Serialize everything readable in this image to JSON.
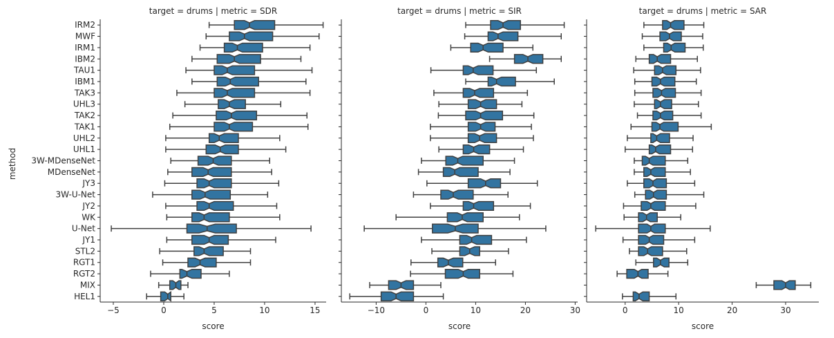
{
  "chart_data": {
    "type": "boxplot",
    "orientation": "horizontal",
    "notched": true,
    "box_color": "#3274a1",
    "line_color": "#3f3f3f",
    "ylabel": "method",
    "methods": [
      "IRM2",
      "MWF",
      "IRM1",
      "IBM2",
      "TAU1",
      "IBM1",
      "TAK3",
      "UHL3",
      "TAK2",
      "TAK1",
      "UHL2",
      "UHL1",
      "3W-MDenseNet",
      "MDenseNet",
      "JY3",
      "3W-U-Net",
      "JY2",
      "WK",
      "U-Net",
      "JY1",
      "STL2",
      "RGT1",
      "RGT2",
      "MIX",
      "HEL1"
    ],
    "panels": [
      {
        "title": "target = drums | metric = SDR",
        "xlabel": "score",
        "xlim": [
          -6.3,
          16.1
        ],
        "xticks": [
          -5,
          0,
          5,
          10,
          15
        ],
        "boxes": [
          {
            "wl": 4.5,
            "q1": 7.0,
            "med": 8.5,
            "q3": 11.0,
            "wh": 15.8,
            "nl": 8.0,
            "nh": 9.0
          },
          {
            "wl": 4.2,
            "q1": 6.5,
            "med": 8.0,
            "q3": 10.8,
            "wh": 15.4,
            "nl": 7.5,
            "nh": 8.5
          },
          {
            "wl": 3.6,
            "q1": 6.0,
            "med": 7.3,
            "q3": 9.8,
            "wh": 14.5,
            "nl": 6.8,
            "nh": 7.8
          },
          {
            "wl": 2.8,
            "q1": 5.3,
            "med": 7.0,
            "q3": 9.6,
            "wh": 13.6,
            "nl": 6.5,
            "nh": 7.5
          },
          {
            "wl": 2.2,
            "q1": 5.0,
            "med": 6.3,
            "q3": 9.0,
            "wh": 14.7,
            "nl": 5.8,
            "nh": 6.8
          },
          {
            "wl": 2.8,
            "q1": 5.3,
            "med": 6.6,
            "q3": 9.4,
            "wh": 14.1,
            "nl": 6.1,
            "nh": 7.1
          },
          {
            "wl": 1.3,
            "q1": 5.0,
            "med": 6.3,
            "q3": 9.0,
            "wh": 14.5,
            "nl": 5.8,
            "nh": 6.8
          },
          {
            "wl": 2.1,
            "q1": 5.4,
            "med": 6.5,
            "q3": 8.1,
            "wh": 11.6,
            "nl": 6.0,
            "nh": 7.0
          },
          {
            "wl": 0.9,
            "q1": 5.2,
            "med": 6.7,
            "q3": 9.2,
            "wh": 14.2,
            "nl": 6.2,
            "nh": 7.2
          },
          {
            "wl": 0.6,
            "q1": 5.0,
            "med": 6.5,
            "q3": 8.8,
            "wh": 14.3,
            "nl": 6.0,
            "nh": 7.0
          },
          {
            "wl": 0.2,
            "q1": 4.5,
            "med": 5.5,
            "q3": 7.4,
            "wh": 11.5,
            "nl": 5.0,
            "nh": 6.0
          },
          {
            "wl": 0.2,
            "q1": 4.2,
            "med": 5.6,
            "q3": 7.4,
            "wh": 12.1,
            "nl": 5.1,
            "nh": 6.1
          },
          {
            "wl": 0.7,
            "q1": 3.4,
            "med": 4.9,
            "q3": 6.7,
            "wh": 10.5,
            "nl": 4.4,
            "nh": 5.4
          },
          {
            "wl": 0.4,
            "q1": 2.8,
            "med": 4.4,
            "q3": 6.7,
            "wh": 10.7,
            "nl": 3.9,
            "nh": 4.9
          },
          {
            "wl": 0.1,
            "q1": 3.3,
            "med": 4.5,
            "q3": 6.7,
            "wh": 11.4,
            "nl": 4.0,
            "nh": 5.0
          },
          {
            "wl": -1.1,
            "q1": 2.8,
            "med": 4.1,
            "q3": 6.6,
            "wh": 10.3,
            "nl": 3.6,
            "nh": 4.6
          },
          {
            "wl": 0.2,
            "q1": 3.3,
            "med": 4.5,
            "q3": 6.9,
            "wh": 11.2,
            "nl": 4.0,
            "nh": 5.0
          },
          {
            "wl": 0.3,
            "q1": 2.8,
            "med": 4.0,
            "q3": 6.5,
            "wh": 11.5,
            "nl": 3.5,
            "nh": 4.5
          },
          {
            "wl": -5.2,
            "q1": 2.3,
            "med": 4.3,
            "q3": 7.2,
            "wh": 14.6,
            "nl": 3.5,
            "nh": 5.1
          },
          {
            "wl": 0.3,
            "q1": 2.8,
            "med": 4.5,
            "q3": 6.4,
            "wh": 11.1,
            "nl": 4.0,
            "nh": 5.0
          },
          {
            "wl": -0.4,
            "q1": 3.0,
            "med": 4.0,
            "q3": 5.9,
            "wh": 8.6,
            "nl": 3.5,
            "nh": 4.5
          },
          {
            "wl": -0.1,
            "q1": 2.4,
            "med": 3.6,
            "q3": 5.2,
            "wh": 8.6,
            "nl": 3.1,
            "nh": 4.1
          },
          {
            "wl": -1.3,
            "q1": 1.6,
            "med": 2.3,
            "q3": 3.7,
            "wh": 6.5,
            "nl": 1.8,
            "nh": 2.8
          },
          {
            "wl": -0.5,
            "q1": 0.6,
            "med": 1.2,
            "q3": 1.7,
            "wh": 2.4,
            "nl": 0.9,
            "nh": 1.5
          },
          {
            "wl": -1.7,
            "q1": -0.3,
            "med": 0.4,
            "q3": 0.7,
            "wh": 2.0,
            "nl": 0.1,
            "nh": 0.7
          }
        ]
      },
      {
        "title": "target = drums | metric = SIR",
        "xlabel": "score",
        "xlim": [
          -17,
          30.5
        ],
        "xticks": [
          -10,
          0,
          10,
          20,
          30
        ],
        "boxes": [
          {
            "wl": 8.0,
            "q1": 13.0,
            "med": 15.5,
            "q3": 19.0,
            "wh": 27.8,
            "nl": 14.5,
            "nh": 16.5
          },
          {
            "wl": 7.8,
            "q1": 12.5,
            "med": 14.5,
            "q3": 18.5,
            "wh": 27.2,
            "nl": 13.5,
            "nh": 15.5
          },
          {
            "wl": 5.0,
            "q1": 9.0,
            "med": 11.5,
            "q3": 15.5,
            "wh": 21.5,
            "nl": 10.5,
            "nh": 12.5
          },
          {
            "wl": 12.8,
            "q1": 17.8,
            "med": 20.5,
            "q3": 23.5,
            "wh": 27.2,
            "nl": 19.5,
            "nh": 21.5
          },
          {
            "wl": 1.0,
            "q1": 7.5,
            "med": 9.5,
            "q3": 13.5,
            "wh": 22.2,
            "nl": 8.5,
            "nh": 10.5
          },
          {
            "wl": 8.0,
            "q1": 12.5,
            "med": 14.2,
            "q3": 18.0,
            "wh": 25.8,
            "nl": 13.2,
            "nh": 15.2
          },
          {
            "wl": 1.6,
            "q1": 7.5,
            "med": 9.8,
            "q3": 13.6,
            "wh": 20.4,
            "nl": 8.8,
            "nh": 10.8
          },
          {
            "wl": 2.6,
            "q1": 8.5,
            "med": 11.0,
            "q3": 14.2,
            "wh": 19.3,
            "nl": 10.0,
            "nh": 12.0
          },
          {
            "wl": 2.5,
            "q1": 8.0,
            "med": 11.0,
            "q3": 15.4,
            "wh": 21.7,
            "nl": 10.0,
            "nh": 12.0
          },
          {
            "wl": 0.9,
            "q1": 8.5,
            "med": 11.0,
            "q3": 13.9,
            "wh": 21.2,
            "nl": 10.0,
            "nh": 12.0
          },
          {
            "wl": 0.9,
            "q1": 8.5,
            "med": 10.8,
            "q3": 14.2,
            "wh": 21.6,
            "nl": 9.8,
            "nh": 11.8
          },
          {
            "wl": 2.6,
            "q1": 7.5,
            "med": 9.6,
            "q3": 12.8,
            "wh": 19.6,
            "nl": 8.6,
            "nh": 10.6
          },
          {
            "wl": -0.9,
            "q1": 4.0,
            "med": 6.4,
            "q3": 11.5,
            "wh": 17.8,
            "nl": 5.4,
            "nh": 7.4
          },
          {
            "wl": -1.5,
            "q1": 3.5,
            "med": 5.8,
            "q3": 10.5,
            "wh": 16.9,
            "nl": 4.8,
            "nh": 6.8
          },
          {
            "wl": 0.2,
            "q1": 8.5,
            "med": 12.0,
            "q3": 15.0,
            "wh": 22.4,
            "nl": 11.0,
            "nh": 13.0
          },
          {
            "wl": -2.5,
            "q1": 3.0,
            "med": 5.5,
            "q3": 9.5,
            "wh": 16.5,
            "nl": 4.5,
            "nh": 6.5
          },
          {
            "wl": 0.9,
            "q1": 7.5,
            "med": 9.6,
            "q3": 13.6,
            "wh": 21.0,
            "nl": 8.6,
            "nh": 10.6
          },
          {
            "wl": -6.0,
            "q1": 4.3,
            "med": 7.3,
            "q3": 11.5,
            "wh": 18.8,
            "nl": 6.3,
            "nh": 8.3
          },
          {
            "wl": -12.4,
            "q1": 1.3,
            "med": 5.9,
            "q3": 10.5,
            "wh": 24.1,
            "nl": 4.4,
            "nh": 7.4
          },
          {
            "wl": -0.9,
            "q1": 6.8,
            "med": 9.2,
            "q3": 13.2,
            "wh": 20.2,
            "nl": 8.2,
            "nh": 10.2
          },
          {
            "wl": 1.2,
            "q1": 6.8,
            "med": 8.8,
            "q3": 10.8,
            "wh": 16.6,
            "nl": 7.8,
            "nh": 9.8
          },
          {
            "wl": -3.0,
            "q1": 2.4,
            "med": 4.5,
            "q3": 7.4,
            "wh": 14.0,
            "nl": 3.5,
            "nh": 5.5
          },
          {
            "wl": -3.1,
            "q1": 3.9,
            "med": 7.5,
            "q3": 10.8,
            "wh": 17.5,
            "nl": 6.5,
            "nh": 8.5
          },
          {
            "wl": -11.3,
            "q1": -7.5,
            "med": -5.0,
            "q3": -2.5,
            "wh": 3.0,
            "nl": -6.0,
            "nh": -4.0
          },
          {
            "wl": -15.3,
            "q1": -9.0,
            "med": -6.0,
            "q3": -2.5,
            "wh": 3.5,
            "nl": -7.0,
            "nh": -5.0
          }
        ]
      },
      {
        "title": "target = drums | metric = SAR",
        "xlabel": "score",
        "xlim": [
          -7.2,
          36.2
        ],
        "xticks": [
          0,
          10,
          20,
          30
        ],
        "boxes": [
          {
            "wl": 3.5,
            "q1": 7.0,
            "med": 8.5,
            "q3": 11.0,
            "wh": 14.7,
            "nl": 7.8,
            "nh": 9.2
          },
          {
            "wl": 3.2,
            "q1": 6.5,
            "med": 8.3,
            "q3": 10.5,
            "wh": 14.5,
            "nl": 7.6,
            "nh": 9.0
          },
          {
            "wl": 3.5,
            "q1": 7.2,
            "med": 8.6,
            "q3": 11.2,
            "wh": 14.6,
            "nl": 7.9,
            "nh": 9.3
          },
          {
            "wl": 2.0,
            "q1": 4.5,
            "med": 6.0,
            "q3": 8.5,
            "wh": 13.5,
            "nl": 5.3,
            "nh": 6.7
          },
          {
            "wl": 1.6,
            "q1": 5.5,
            "med": 7.0,
            "q3": 9.5,
            "wh": 14.1,
            "nl": 6.3,
            "nh": 7.7
          },
          {
            "wl": 1.8,
            "q1": 5.0,
            "med": 6.6,
            "q3": 9.3,
            "wh": 13.3,
            "nl": 5.9,
            "nh": 7.3
          },
          {
            "wl": 1.8,
            "q1": 5.2,
            "med": 6.8,
            "q3": 9.4,
            "wh": 14.2,
            "nl": 6.1,
            "nh": 7.5
          },
          {
            "wl": 1.7,
            "q1": 5.5,
            "med": 6.6,
            "q3": 8.7,
            "wh": 13.7,
            "nl": 5.9,
            "nh": 7.3
          },
          {
            "wl": 2.3,
            "q1": 5.2,
            "med": 6.6,
            "q3": 8.9,
            "wh": 14.2,
            "nl": 5.9,
            "nh": 7.3
          },
          {
            "wl": 1.1,
            "q1": 5.0,
            "med": 6.5,
            "q3": 9.9,
            "wh": 16.1,
            "nl": 5.8,
            "nh": 7.2
          },
          {
            "wl": 0.4,
            "q1": 4.8,
            "med": 5.9,
            "q3": 8.3,
            "wh": 12.7,
            "nl": 5.2,
            "nh": 6.6
          },
          {
            "wl": 0.0,
            "q1": 4.5,
            "med": 5.7,
            "q3": 8.5,
            "wh": 12.6,
            "nl": 5.0,
            "nh": 6.4
          },
          {
            "wl": 1.7,
            "q1": 3.2,
            "med": 4.5,
            "q3": 7.5,
            "wh": 11.7,
            "nl": 3.8,
            "nh": 5.2
          },
          {
            "wl": 1.7,
            "q1": 3.5,
            "med": 4.8,
            "q3": 7.5,
            "wh": 12.2,
            "nl": 4.1,
            "nh": 5.5
          },
          {
            "wl": 0.4,
            "q1": 3.5,
            "med": 5.2,
            "q3": 7.7,
            "wh": 13.0,
            "nl": 4.5,
            "nh": 5.9
          },
          {
            "wl": 1.8,
            "q1": 3.8,
            "med": 5.3,
            "q3": 7.7,
            "wh": 14.7,
            "nl": 4.6,
            "nh": 6.0
          },
          {
            "wl": -0.3,
            "q1": 3.0,
            "med": 4.8,
            "q3": 7.5,
            "wh": 13.2,
            "nl": 4.1,
            "nh": 5.5
          },
          {
            "wl": -0.2,
            "q1": 2.5,
            "med": 4.0,
            "q3": 6.0,
            "wh": 10.4,
            "nl": 3.3,
            "nh": 4.7
          },
          {
            "wl": -5.5,
            "q1": 2.5,
            "med": 4.8,
            "q3": 7.5,
            "wh": 15.9,
            "nl": 4.1,
            "nh": 5.5
          },
          {
            "wl": -0.4,
            "q1": 2.5,
            "med": 4.5,
            "q3": 7.2,
            "wh": 13.0,
            "nl": 3.8,
            "nh": 5.2
          },
          {
            "wl": 0.8,
            "q1": 2.5,
            "med": 4.2,
            "q3": 7.0,
            "wh": 11.5,
            "nl": 3.5,
            "nh": 4.9
          },
          {
            "wl": 2.0,
            "q1": 5.3,
            "med": 6.6,
            "q3": 8.2,
            "wh": 11.7,
            "nl": 5.9,
            "nh": 7.3
          },
          {
            "wl": -1.5,
            "q1": 0.3,
            "med": 2.4,
            "q3": 4.3,
            "wh": 8.0,
            "nl": 1.7,
            "nh": 3.1
          },
          {
            "wl": 24.5,
            "q1": 27.8,
            "med": 30.0,
            "q3": 31.8,
            "wh": 34.7,
            "nl": 29.3,
            "nh": 30.7
          },
          {
            "wl": -0.5,
            "q1": 1.5,
            "med": 2.6,
            "q3": 4.5,
            "wh": 9.5,
            "nl": 1.9,
            "nh": 3.3
          }
        ]
      }
    ]
  }
}
